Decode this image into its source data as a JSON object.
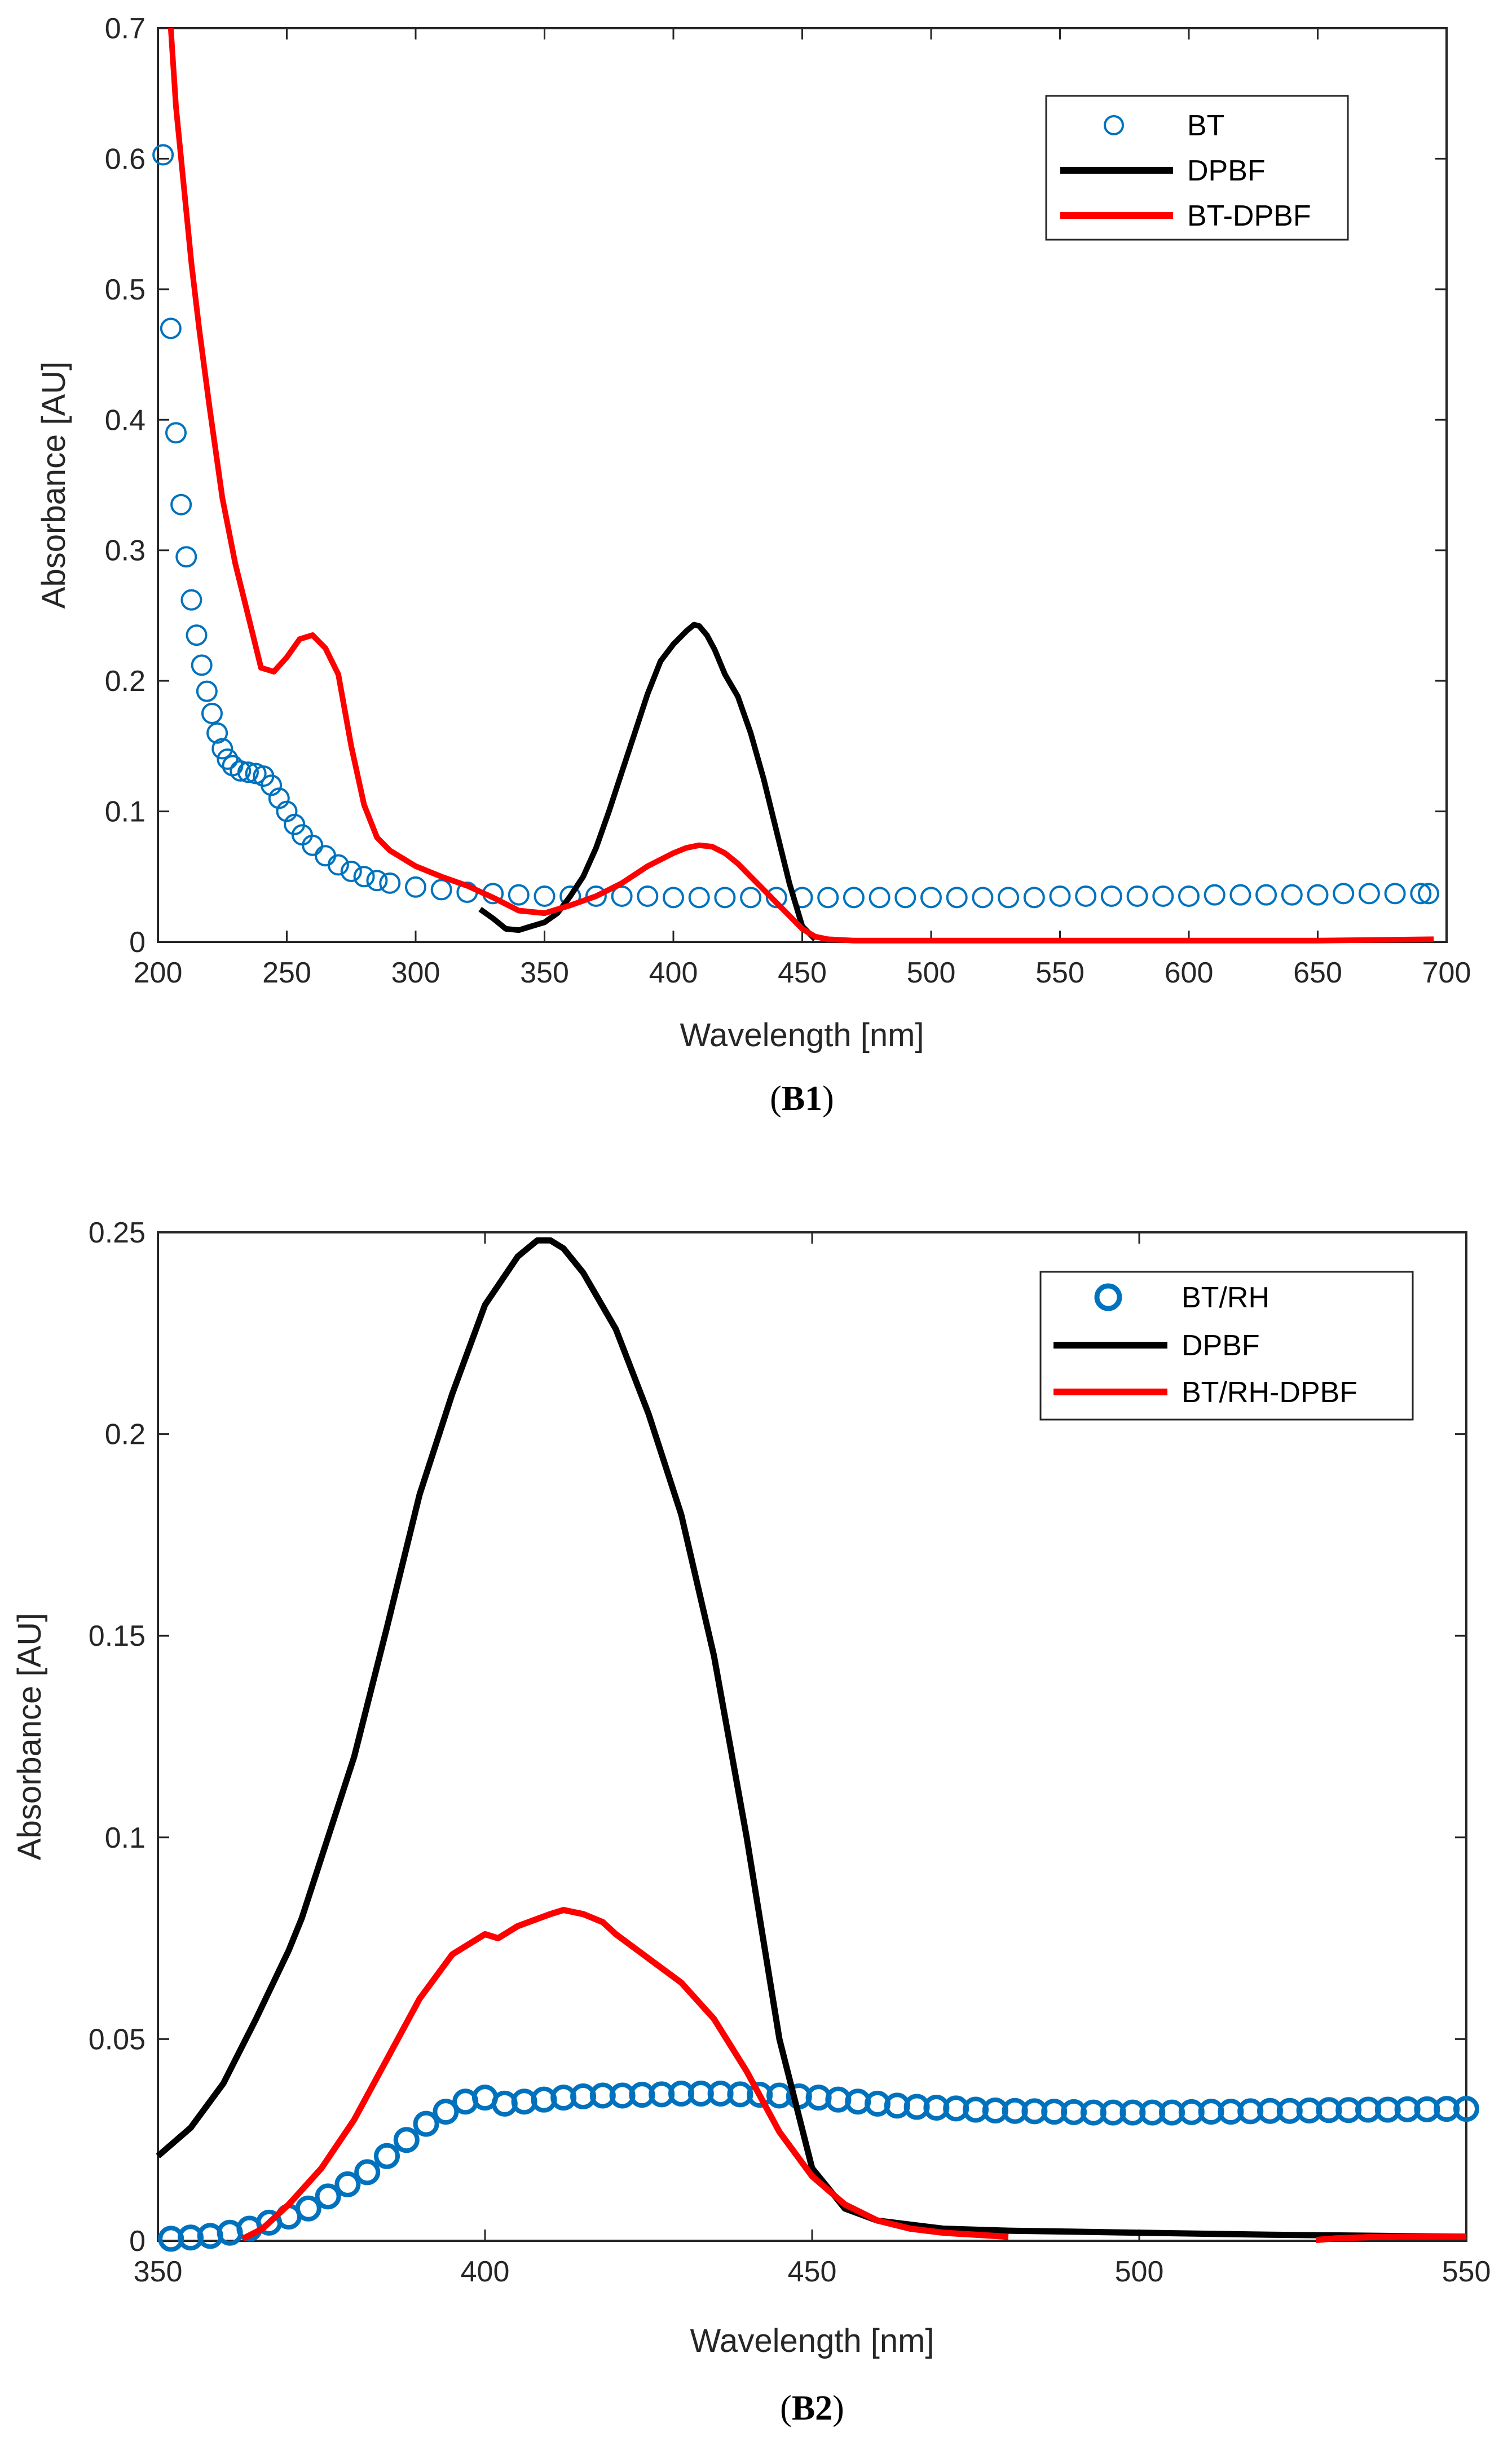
{
  "colors": {
    "bt": "#0072BD",
    "dpbf": "#000000",
    "mixture": "#FF0000",
    "axis": "#262626"
  },
  "chart_data": [
    {
      "type": "line",
      "caption": "(B1)",
      "xlabel": "Wavelength [nm]",
      "ylabel": "Absorbance [AU]",
      "xlim": [
        200,
        700
      ],
      "ylim": [
        0,
        0.7
      ],
      "xticks": [
        200,
        250,
        300,
        350,
        400,
        450,
        500,
        550,
        600,
        650,
        700
      ],
      "xtick_labels": [
        "200",
        "250",
        "300",
        "350",
        "400",
        "450",
        "500",
        "550",
        "600",
        "650",
        700
      ],
      "yticks": [
        0,
        0.1,
        0.2,
        0.3,
        0.4,
        0.5,
        0.6,
        0.7
      ],
      "ytick_labels": [
        "0",
        "0.1",
        "0.2",
        "0.3",
        "0.4",
        "0.5",
        "0.6",
        "0.7"
      ],
      "grid": false,
      "legend_position": "top-right",
      "series": [
        {
          "name": "BT",
          "style": "markers",
          "color": "#0072BD",
          "x": [
            202,
            205,
            207,
            209,
            211,
            213,
            215,
            217,
            219,
            221,
            223,
            225,
            227,
            229,
            232,
            235,
            238,
            241,
            244,
            247,
            250,
            253,
            256,
            260,
            265,
            270,
            275,
            280,
            285,
            290,
            300,
            310,
            320,
            330,
            340,
            350,
            360,
            370,
            380,
            390,
            400,
            410,
            420,
            430,
            440,
            450,
            460,
            470,
            480,
            490,
            500,
            510,
            520,
            530,
            540,
            550,
            560,
            570,
            580,
            590,
            600,
            610,
            620,
            630,
            640,
            650,
            660,
            670,
            680,
            690,
            693
          ],
          "y": [
            0.603,
            0.47,
            0.39,
            0.335,
            0.295,
            0.262,
            0.235,
            0.212,
            0.192,
            0.175,
            0.16,
            0.148,
            0.14,
            0.135,
            0.131,
            0.13,
            0.129,
            0.127,
            0.12,
            0.11,
            0.1,
            0.09,
            0.082,
            0.074,
            0.066,
            0.059,
            0.054,
            0.05,
            0.047,
            0.045,
            0.042,
            0.04,
            0.038,
            0.037,
            0.036,
            0.035,
            0.035,
            0.035,
            0.035,
            0.035,
            0.034,
            0.034,
            0.034,
            0.034,
            0.034,
            0.034,
            0.034,
            0.034,
            0.034,
            0.034,
            0.034,
            0.034,
            0.034,
            0.034,
            0.034,
            0.035,
            0.035,
            0.035,
            0.035,
            0.035,
            0.035,
            0.036,
            0.036,
            0.036,
            0.036,
            0.036,
            0.037,
            0.037,
            0.037,
            0.037,
            0.037
          ]
        },
        {
          "name": "DPBF",
          "style": "line",
          "color": "#000000",
          "x": [
            325,
            330,
            335,
            340,
            345,
            350,
            355,
            360,
            365,
            370,
            375,
            380,
            385,
            390,
            395,
            400,
            405,
            408,
            410,
            413,
            416,
            420,
            425,
            430,
            435,
            440,
            445,
            450,
            455
          ],
          "y": [
            0.025,
            0.018,
            0.01,
            0.009,
            0.012,
            0.015,
            0.022,
            0.035,
            0.05,
            0.072,
            0.1,
            0.13,
            0.16,
            0.19,
            0.215,
            0.228,
            0.238,
            0.243,
            0.242,
            0.235,
            0.224,
            0.205,
            0.188,
            0.16,
            0.125,
            0.085,
            0.045,
            0.012,
            0.002
          ]
        },
        {
          "name": "BT-DPBF",
          "style": "line",
          "color": "#FF0000",
          "x": [
            205,
            207,
            210,
            213,
            216,
            220,
            225,
            230,
            235,
            240,
            245,
            250,
            255,
            260,
            265,
            270,
            275,
            280,
            285,
            290,
            300,
            310,
            320,
            330,
            340,
            350,
            360,
            370,
            380,
            390,
            400,
            405,
            410,
            415,
            420,
            425,
            430,
            435,
            440,
            445,
            450,
            455,
            460,
            470,
            500,
            550,
            600,
            650,
            695
          ],
          "y": [
            0.7,
            0.64,
            0.58,
            0.52,
            0.47,
            0.41,
            0.34,
            0.29,
            0.25,
            0.21,
            0.207,
            0.218,
            0.232,
            0.235,
            0.225,
            0.205,
            0.15,
            0.105,
            0.08,
            0.07,
            0.058,
            0.05,
            0.043,
            0.034,
            0.024,
            0.022,
            0.028,
            0.035,
            0.045,
            0.058,
            0.068,
            0.072,
            0.074,
            0.073,
            0.068,
            0.06,
            0.05,
            0.04,
            0.03,
            0.02,
            0.01,
            0.004,
            0.002,
            0.001,
            0.001,
            0.001,
            0.001,
            0.001,
            0.002
          ]
        }
      ]
    },
    {
      "type": "line",
      "caption": "(B2)",
      "xlabel": "Wavelength [nm]",
      "ylabel": "Absorbance [AU]",
      "xlim": [
        350,
        550
      ],
      "ylim": [
        0,
        0.25
      ],
      "xticks": [
        350,
        400,
        450,
        500,
        550
      ],
      "xtick_labels": [
        "350",
        "400",
        "450",
        "500",
        "550"
      ],
      "yticks": [
        0,
        0.05,
        0.1,
        0.15,
        0.2,
        0.25
      ],
      "ytick_labels": [
        "0",
        "0.05",
        "0.1",
        "0.15",
        "0.2",
        "0.25"
      ],
      "grid": false,
      "legend_position": "top-right",
      "series": [
        {
          "name": "BT/RH",
          "style": "markers",
          "color": "#0072BD",
          "x": [
            352,
            355,
            358,
            361,
            364,
            367,
            370,
            373,
            376,
            379,
            382,
            385,
            388,
            391,
            394,
            397,
            400,
            403,
            406,
            409,
            412,
            415,
            418,
            421,
            424,
            427,
            430,
            433,
            436,
            439,
            442,
            445,
            448,
            451,
            454,
            457,
            460,
            463,
            466,
            469,
            472,
            475,
            478,
            481,
            484,
            487,
            490,
            493,
            496,
            499,
            502,
            505,
            508,
            511,
            514,
            517,
            520,
            523,
            526,
            529,
            532,
            535,
            538,
            541,
            544,
            547,
            550
          ],
          "y": [
            0.0005,
            0.0008,
            0.0012,
            0.002,
            0.003,
            0.0045,
            0.006,
            0.008,
            0.011,
            0.014,
            0.017,
            0.021,
            0.025,
            0.029,
            0.032,
            0.0345,
            0.0355,
            0.034,
            0.0345,
            0.035,
            0.0355,
            0.0358,
            0.036,
            0.036,
            0.0362,
            0.0363,
            0.0365,
            0.0365,
            0.0365,
            0.0363,
            0.0362,
            0.036,
            0.0358,
            0.0355,
            0.035,
            0.0345,
            0.034,
            0.0335,
            0.0332,
            0.033,
            0.0328,
            0.0325,
            0.0323,
            0.0322,
            0.0321,
            0.032,
            0.0319,
            0.0318,
            0.0318,
            0.0318,
            0.0318,
            0.0318,
            0.0319,
            0.032,
            0.032,
            0.0321,
            0.0322,
            0.0322,
            0.0323,
            0.0324,
            0.0324,
            0.0325,
            0.0325,
            0.0326,
            0.0326,
            0.0327,
            0.0327
          ]
        },
        {
          "name": "DPBF",
          "style": "line",
          "color": "#000000",
          "x": [
            350,
            355,
            360,
            365,
            370,
            372,
            375,
            380,
            385,
            390,
            395,
            400,
            405,
            408,
            410,
            412,
            415,
            420,
            425,
            430,
            435,
            440,
            445,
            450,
            455,
            460,
            470,
            480,
            500,
            520,
            550
          ],
          "y": [
            0.021,
            0.028,
            0.039,
            0.055,
            0.072,
            0.08,
            0.095,
            0.12,
            0.152,
            0.185,
            0.21,
            0.232,
            0.244,
            0.248,
            0.248,
            0.246,
            0.24,
            0.226,
            0.205,
            0.18,
            0.145,
            0.1,
            0.05,
            0.018,
            0.008,
            0.005,
            0.003,
            0.0025,
            0.002,
            0.0015,
            0.001
          ]
        },
        {
          "name": "BT/RH-DPBF",
          "style": "line",
          "color": "#FF0000",
          "x": [
            363,
            366,
            370,
            375,
            380,
            385,
            390,
            395,
            400,
            402,
            405,
            410,
            412,
            415,
            418,
            420,
            425,
            430,
            435,
            440,
            445,
            450,
            455,
            460,
            465,
            470,
            475,
            480
          ],
          "y": [
            0.0005,
            0.003,
            0.009,
            0.018,
            0.03,
            0.045,
            0.06,
            0.071,
            0.076,
            0.075,
            0.078,
            0.081,
            0.082,
            0.081,
            0.079,
            0.076,
            0.07,
            0.064,
            0.055,
            0.042,
            0.027,
            0.016,
            0.009,
            0.005,
            0.003,
            0.002,
            0.0015,
            0.001
          ]
        },
        {
          "name": "",
          "style": "line",
          "color": "#FF0000",
          "x": [
            527,
            530,
            535,
            540,
            545,
            550
          ],
          "y": [
            0.0002,
            0.0006,
            0.0009,
            0.001,
            0.001,
            0.001
          ]
        }
      ]
    }
  ]
}
